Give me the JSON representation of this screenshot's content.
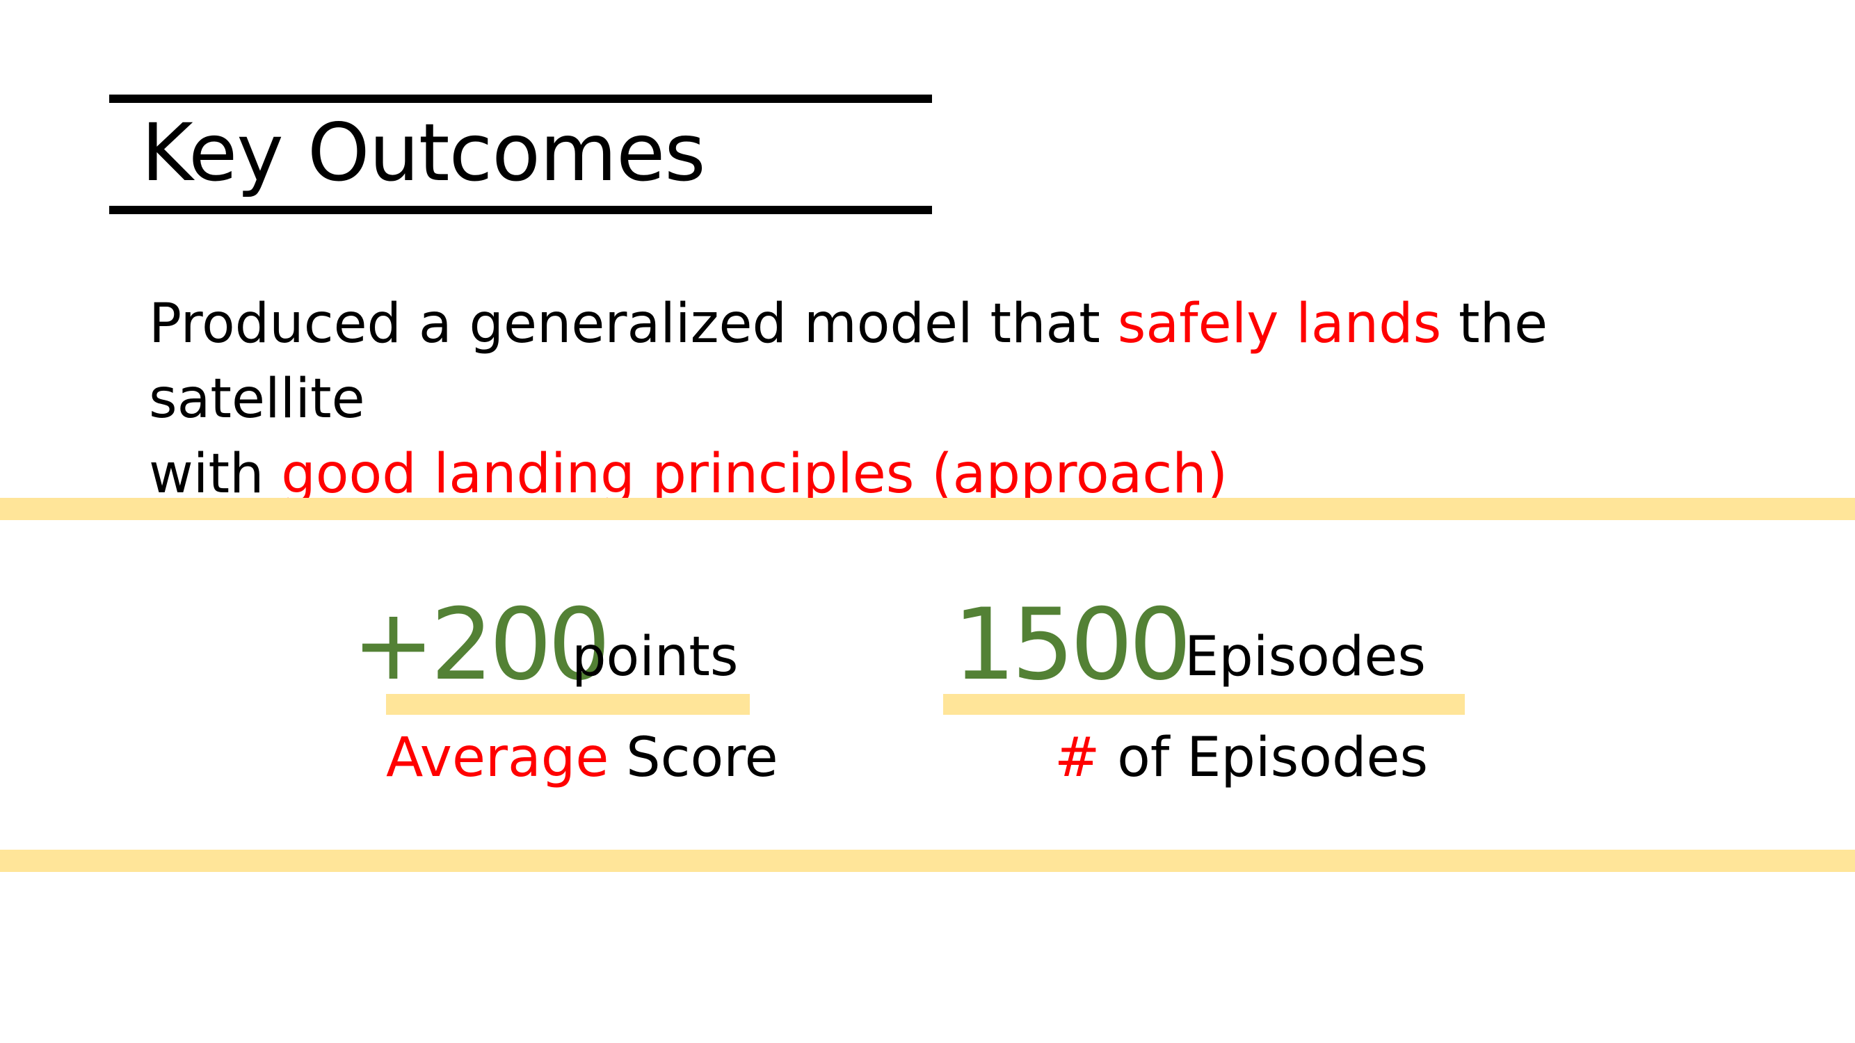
{
  "slide": {
    "title": "Key Outcomes",
    "summary": {
      "line1_prefix": "Produced a generalized model that ",
      "line1_highlight": "safely lands",
      "line1_suffix": " the satellite",
      "line2_prefix": "with ",
      "line2_highlight": "good landing principles (approach)"
    },
    "metrics": [
      {
        "value": "+200",
        "unit": "points",
        "label_highlight": "Average",
        "label_rest": " Score"
      },
      {
        "value": "1500",
        "unit": "Episodes",
        "label_highlight": "#",
        "label_rest": " of Episodes"
      }
    ]
  },
  "colors": {
    "accent_red": "#ff0000",
    "metric_green": "#538135",
    "band_yellow": "#ffe599",
    "text": "#000000"
  }
}
